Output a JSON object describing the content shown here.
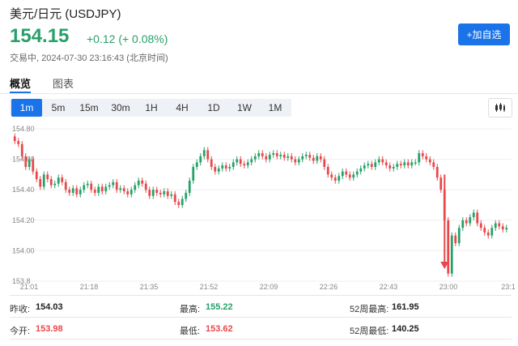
{
  "header": {
    "title": "美元/日元 (USDJPY)",
    "price": "154.15",
    "change": "+0.12 (+ 0.08%)",
    "status": "交易中, 2024-07-30 23:16:43 (北京时间)",
    "add_button": "+加自选"
  },
  "tabs": [
    {
      "label": "概览",
      "active": true
    },
    {
      "label": "图表",
      "active": false
    }
  ],
  "intervals": [
    {
      "label": "1m",
      "active": true
    },
    {
      "label": "5m",
      "active": false
    },
    {
      "label": "15m",
      "active": false
    },
    {
      "label": "30m",
      "active": false
    },
    {
      "label": "1H",
      "active": false
    },
    {
      "label": "4H",
      "active": false
    },
    {
      "label": "1D",
      "active": false
    },
    {
      "label": "1W",
      "active": false
    },
    {
      "label": "1M",
      "active": false
    }
  ],
  "chart_type_icon": "candlestick-icon",
  "colors": {
    "up": "#27a069",
    "down": "#e8484b",
    "accent": "#1a73e8",
    "arrow": "#e8484b"
  },
  "chart_data": {
    "type": "candlestick",
    "ylim": [
      153.8,
      154.8
    ],
    "yticks": [
      "154.80",
      "154.60",
      "154.40",
      "154.20",
      "154.00",
      "153.8"
    ],
    "xticks": [
      "21:01",
      "21:18",
      "21:35",
      "21:52",
      "22:09",
      "22:26",
      "22:43",
      "23:00",
      "23:1"
    ],
    "x_range": [
      0,
      136
    ],
    "series_close": [
      154.72,
      154.7,
      154.62,
      154.55,
      154.6,
      154.52,
      154.47,
      154.42,
      154.5,
      154.47,
      154.43,
      154.44,
      154.48,
      154.45,
      154.4,
      154.38,
      154.41,
      154.37,
      154.4,
      154.43,
      154.44,
      154.4,
      154.38,
      154.42,
      154.39,
      154.42,
      154.43,
      154.45,
      154.4,
      154.41,
      154.39,
      154.37,
      154.4,
      154.43,
      154.46,
      154.44,
      154.4,
      154.36,
      154.4,
      154.38,
      154.37,
      154.39,
      154.36,
      154.37,
      154.32,
      154.3,
      154.34,
      154.38,
      154.46,
      154.55,
      154.58,
      154.62,
      154.66,
      154.6,
      154.55,
      154.52,
      154.54,
      154.56,
      154.54,
      154.55,
      154.58,
      154.6,
      154.57,
      154.56,
      154.58,
      154.6,
      154.62,
      154.64,
      154.62,
      154.6,
      154.63,
      154.64,
      154.62,
      154.63,
      154.61,
      154.62,
      154.6,
      154.58,
      154.6,
      154.62,
      154.63,
      154.61,
      154.59,
      154.62,
      154.6,
      154.55,
      154.5,
      154.48,
      154.46,
      154.49,
      154.52,
      154.5,
      154.48,
      154.5,
      154.52,
      154.54,
      154.56,
      154.57,
      154.55,
      154.58,
      154.6,
      154.58,
      154.56,
      154.54,
      154.55,
      154.57,
      154.56,
      154.58,
      154.56,
      154.58,
      154.58,
      154.64,
      154.62,
      154.6,
      154.58,
      154.55,
      154.48,
      154.4,
      154.2,
      153.85,
      154.1,
      154.05,
      154.15,
      154.2,
      154.18,
      154.22,
      154.25,
      154.18,
      154.15,
      154.12,
      154.1,
      154.15,
      154.18,
      154.16,
      154.14,
      154.15
    ],
    "annotations": [
      {
        "type": "arrow",
        "x": 118,
        "y_from": 154.5,
        "y_to": 153.88
      }
    ]
  },
  "stats": [
    {
      "label": "昨收:",
      "value": "154.03",
      "color": "#222222"
    },
    {
      "label": "最高:",
      "value": "155.22",
      "color": "#27a069"
    },
    {
      "label": "52周最高:",
      "value": "161.95",
      "color": "#222222"
    },
    {
      "label": "今开:",
      "value": "153.98",
      "color": "#e8484b"
    },
    {
      "label": "最低:",
      "value": "153.62",
      "color": "#e8484b"
    },
    {
      "label": "52周最低:",
      "value": "140.25",
      "color": "#222222"
    }
  ]
}
